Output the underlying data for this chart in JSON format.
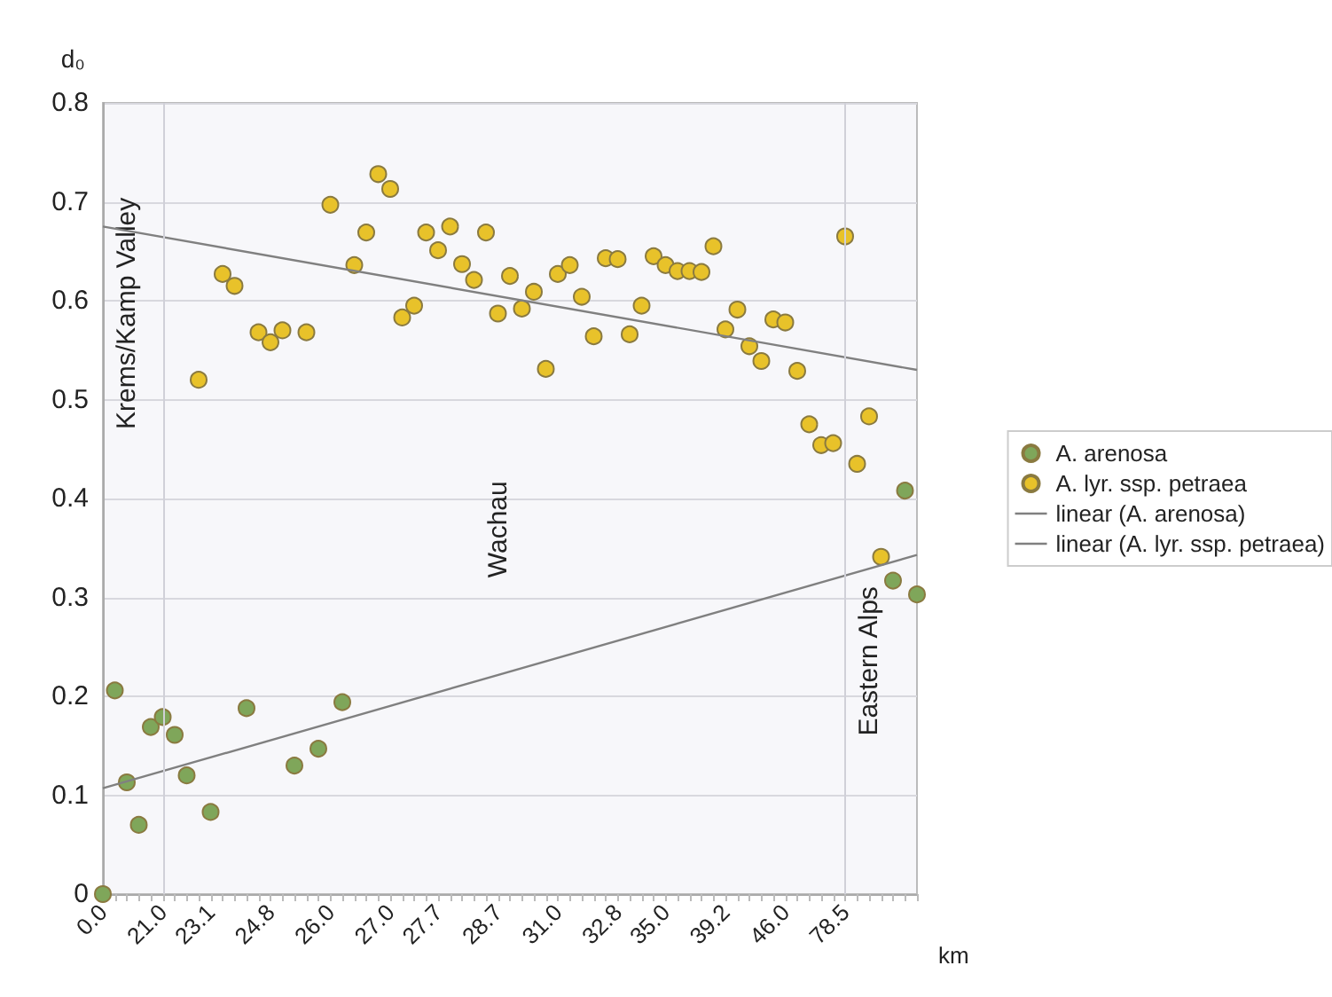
{
  "chart_data": {
    "type": "scatter",
    "ylabel": "d₀",
    "xlabel": "km",
    "categories": [
      "0.0",
      null,
      null,
      null,
      null,
      "21.0",
      null,
      null,
      null,
      "23.1",
      null,
      null,
      null,
      null,
      "24.8",
      null,
      null,
      null,
      null,
      "26.0",
      null,
      null,
      null,
      null,
      "27.0",
      null,
      null,
      null,
      "27.7",
      null,
      null,
      null,
      null,
      "28.7",
      null,
      null,
      null,
      null,
      "31.0",
      null,
      null,
      null,
      null,
      "32.8",
      null,
      null,
      null,
      "35.0",
      null,
      null,
      null,
      null,
      "39.2",
      null,
      null,
      null,
      null,
      "46.0",
      null,
      null,
      null,
      null,
      "78.5",
      null,
      null,
      null,
      null,
      null,
      null
    ],
    "series": [
      {
        "name": "A. arenosa",
        "marker": "circle",
        "color": "#7fa65a",
        "values": [
          0.0,
          0.206,
          0.113,
          0.07,
          0.169,
          0.179,
          0.161,
          0.12,
          null,
          0.083,
          null,
          null,
          0.188,
          null,
          null,
          null,
          0.13,
          null,
          0.147,
          null,
          0.194,
          null,
          null,
          null,
          null,
          null,
          null,
          null,
          null,
          null,
          null,
          null,
          null,
          null,
          null,
          null,
          null,
          null,
          null,
          null,
          null,
          null,
          null,
          null,
          null,
          null,
          null,
          null,
          null,
          null,
          null,
          null,
          null,
          null,
          null,
          null,
          null,
          null,
          null,
          null,
          null,
          null,
          null,
          null,
          null,
          null,
          0.317,
          0.408,
          0.303
        ]
      },
      {
        "name": "A. lyr. ssp. petraea",
        "marker": "circle",
        "color": "#e8c22a",
        "values": [
          null,
          null,
          null,
          null,
          null,
          null,
          null,
          null,
          0.52,
          null,
          0.627,
          0.615,
          null,
          0.568,
          0.558,
          0.57,
          null,
          0.568,
          null,
          0.697,
          null,
          0.636,
          0.669,
          0.728,
          0.713,
          0.583,
          0.595,
          0.669,
          0.651,
          0.675,
          0.637,
          0.621,
          0.669,
          0.587,
          0.625,
          0.592,
          0.609,
          0.531,
          0.627,
          0.636,
          0.604,
          0.564,
          0.643,
          0.642,
          0.566,
          0.595,
          0.645,
          0.636,
          0.63,
          0.63,
          0.629,
          0.655,
          0.571,
          0.591,
          0.554,
          0.539,
          0.581,
          0.578,
          0.529,
          0.475,
          0.454,
          0.456,
          0.665,
          0.435,
          0.483,
          0.341,
          null,
          null,
          null
        ]
      },
      {
        "name": "linear (A. arenosa)",
        "type": "line",
        "marker": "none",
        "color": "#808080",
        "values": [
          0.107,
          null,
          null,
          null,
          null,
          null,
          null,
          null,
          null,
          null,
          null,
          null,
          null,
          null,
          null,
          null,
          null,
          null,
          null,
          null,
          null,
          null,
          null,
          null,
          null,
          null,
          null,
          null,
          null,
          null,
          null,
          null,
          null,
          null,
          null,
          null,
          null,
          null,
          null,
          null,
          null,
          null,
          null,
          null,
          null,
          null,
          null,
          null,
          null,
          null,
          null,
          null,
          null,
          null,
          null,
          null,
          null,
          null,
          null,
          null,
          null,
          null,
          null,
          null,
          null,
          null,
          null,
          null,
          0.343
        ]
      },
      {
        "name": "linear (A. lyr. ssp. petraea)",
        "type": "line",
        "marker": "none",
        "color": "#808080",
        "values": [
          0.675,
          null,
          null,
          null,
          null,
          null,
          null,
          null,
          null,
          null,
          null,
          null,
          null,
          null,
          null,
          null,
          null,
          null,
          null,
          null,
          null,
          null,
          null,
          null,
          null,
          null,
          null,
          null,
          null,
          null,
          null,
          null,
          null,
          null,
          null,
          null,
          null,
          null,
          null,
          null,
          null,
          null,
          null,
          null,
          null,
          null,
          null,
          null,
          null,
          null,
          null,
          null,
          null,
          null,
          null,
          null,
          null,
          null,
          null,
          null,
          null,
          null,
          null,
          null,
          null,
          null,
          null,
          null,
          0.53
        ]
      }
    ],
    "ylim": [
      0,
      0.8
    ],
    "yticks": [
      0,
      0.1,
      0.2,
      0.3,
      0.4,
      0.5,
      0.6,
      0.7,
      0.8
    ],
    "grid": "y",
    "legend": "right",
    "ref_lines": [
      {
        "axis": "x",
        "value": "21.0",
        "color": "#d0d0d8"
      },
      {
        "axis": "x",
        "value": "78.5",
        "color": "#d0d0d8"
      }
    ],
    "annotations": [
      "Krems/Kamp Valley",
      "Wachau",
      "Eastern Alps"
    ]
  }
}
